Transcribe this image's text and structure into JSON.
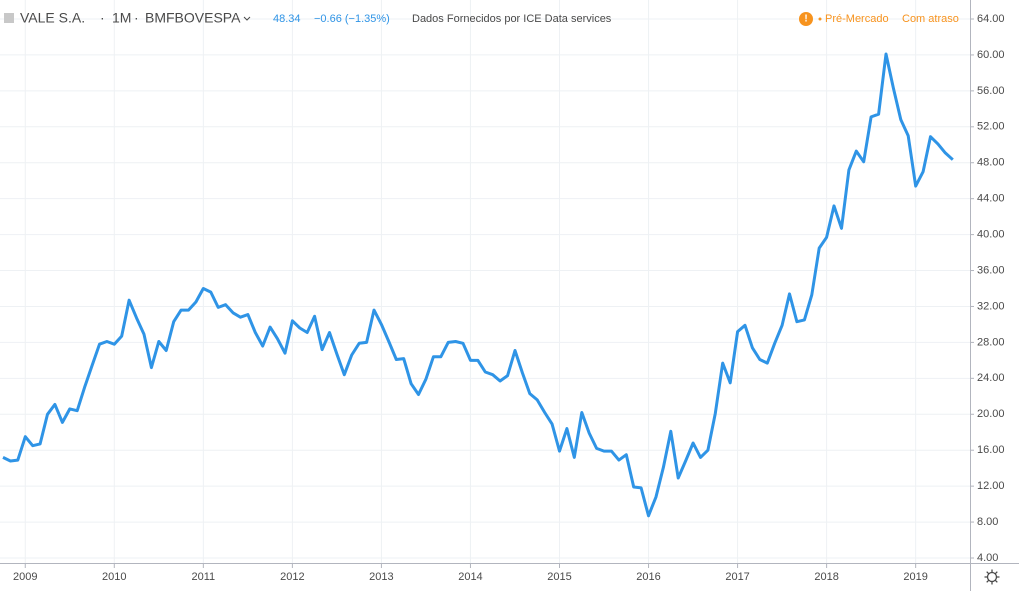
{
  "header": {
    "symbol": "VALE S.A.",
    "interval": "1M",
    "exchange": "BMFBOVESPA",
    "price": "48.34",
    "change": "−0.66 (−1.35%)",
    "source": "Dados Fornecidos por ICE Data services",
    "status": "Pré-Mercado",
    "delay": "Com atraso"
  },
  "chart_data": {
    "type": "line",
    "categories": [
      null,
      null,
      null,
      "2009",
      null,
      null,
      null,
      null,
      null,
      null,
      null,
      null,
      null,
      null,
      null,
      "2010",
      null,
      null,
      null,
      null,
      null,
      null,
      null,
      null,
      null,
      null,
      null,
      "2011",
      null,
      null,
      null,
      null,
      null,
      null,
      null,
      null,
      null,
      null,
      null,
      "2012",
      null,
      null,
      null,
      null,
      null,
      null,
      null,
      null,
      null,
      null,
      null,
      "2013",
      null,
      null,
      null,
      null,
      null,
      null,
      null,
      null,
      null,
      null,
      null,
      "2014",
      null,
      null,
      null,
      null,
      null,
      null,
      null,
      null,
      null,
      null,
      null,
      "2015",
      null,
      null,
      null,
      null,
      null,
      null,
      null,
      null,
      null,
      null,
      null,
      "2016",
      null,
      null,
      null,
      null,
      null,
      null,
      null,
      null,
      null,
      null,
      null,
      "2017",
      null,
      null,
      null,
      null,
      null,
      null,
      null,
      null,
      null,
      null,
      null,
      "2018",
      null,
      null,
      null,
      null,
      null,
      null,
      null,
      null,
      null,
      null,
      null,
      "2019",
      null,
      null,
      null,
      null,
      null
    ],
    "series": [
      {
        "name": "VALE S.A.",
        "color": "#2f94e6",
        "values": [
          15.2,
          14.8,
          14.9,
          17.5,
          16.5,
          16.7,
          20.0,
          21.1,
          19.1,
          20.6,
          20.4,
          23.0,
          25.4,
          27.8,
          28.1,
          27.8,
          28.7,
          32.7,
          30.7,
          28.9,
          25.2,
          28.1,
          27.1,
          30.3,
          31.6,
          31.6,
          32.5,
          34.0,
          33.6,
          31.9,
          32.2,
          31.3,
          30.8,
          31.1,
          29.1,
          27.6,
          29.7,
          28.4,
          26.8,
          30.4,
          29.6,
          29.1,
          30.9,
          27.2,
          29.1,
          26.7,
          24.4,
          26.6,
          27.9,
          28.0,
          31.6,
          30.0,
          28.1,
          26.1,
          26.2,
          23.4,
          22.2,
          23.9,
          26.4,
          26.4,
          28.0,
          28.1,
          27.9,
          26.0,
          26.0,
          24.7,
          24.4,
          23.7,
          24.3,
          27.1,
          24.6,
          22.3,
          21.6,
          20.2,
          18.9,
          15.9,
          18.4,
          15.2,
          20.2,
          17.9,
          16.2,
          15.9,
          15.9,
          14.9,
          15.5,
          11.9,
          11.8,
          8.7,
          10.8,
          14.1,
          18.1,
          12.9,
          14.8,
          16.8,
          15.2,
          16.0,
          20.1,
          25.7,
          23.5,
          29.2,
          29.9,
          27.4,
          26.1,
          25.7,
          27.9,
          29.9,
          33.4,
          30.3,
          30.5,
          33.3,
          38.5,
          39.7,
          43.2,
          40.7,
          47.2,
          49.3,
          48.1,
          53.1,
          53.4,
          60.1,
          56.3,
          52.8,
          51.0,
          45.4,
          47.0,
          50.9,
          50.1,
          49.1,
          48.34
        ]
      }
    ],
    "ylim": [
      4,
      64
    ],
    "yticks": [
      {
        "value": 4,
        "label": "4.00"
      },
      {
        "value": 8,
        "label": "8.00"
      },
      {
        "value": 12,
        "label": "12.00"
      },
      {
        "value": 16,
        "label": "16.00"
      },
      {
        "value": 20,
        "label": "20.00"
      },
      {
        "value": 24,
        "label": "24.00"
      },
      {
        "value": 28,
        "label": "28.00"
      },
      {
        "value": 32,
        "label": "32.00"
      },
      {
        "value": 36,
        "label": "36.00"
      },
      {
        "value": 40,
        "label": "40.00"
      },
      {
        "value": 44,
        "label": "44.00"
      },
      {
        "value": 48,
        "label": "48.00"
      },
      {
        "value": 52,
        "label": "52.00"
      },
      {
        "value": 56,
        "label": "56.00"
      },
      {
        "value": 60,
        "label": "60.00"
      },
      {
        "value": 64,
        "label": "64.00"
      }
    ],
    "grid": true
  }
}
